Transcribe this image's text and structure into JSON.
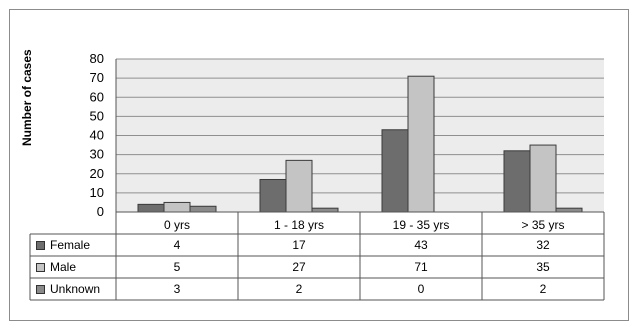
{
  "chart_data": {
    "type": "bar",
    "ylabel": "Number of cases",
    "ylim": [
      0,
      80
    ],
    "yticks": [
      0,
      10,
      20,
      30,
      40,
      50,
      60,
      70,
      80
    ],
    "grid": true,
    "categories": [
      "0 yrs",
      "1 - 18 yrs",
      "19 - 35 yrs",
      "> 35 yrs"
    ],
    "series": [
      {
        "name": "Female",
        "values": [
          4,
          17,
          43,
          32
        ],
        "color": "#6d6d6d"
      },
      {
        "name": "Male",
        "values": [
          5,
          27,
          71,
          35
        ],
        "color": "#c4c4c4"
      },
      {
        "name": "Unknown",
        "values": [
          3,
          2,
          0,
          2
        ],
        "color": "#8a8a8a"
      }
    ],
    "data_table": true
  }
}
